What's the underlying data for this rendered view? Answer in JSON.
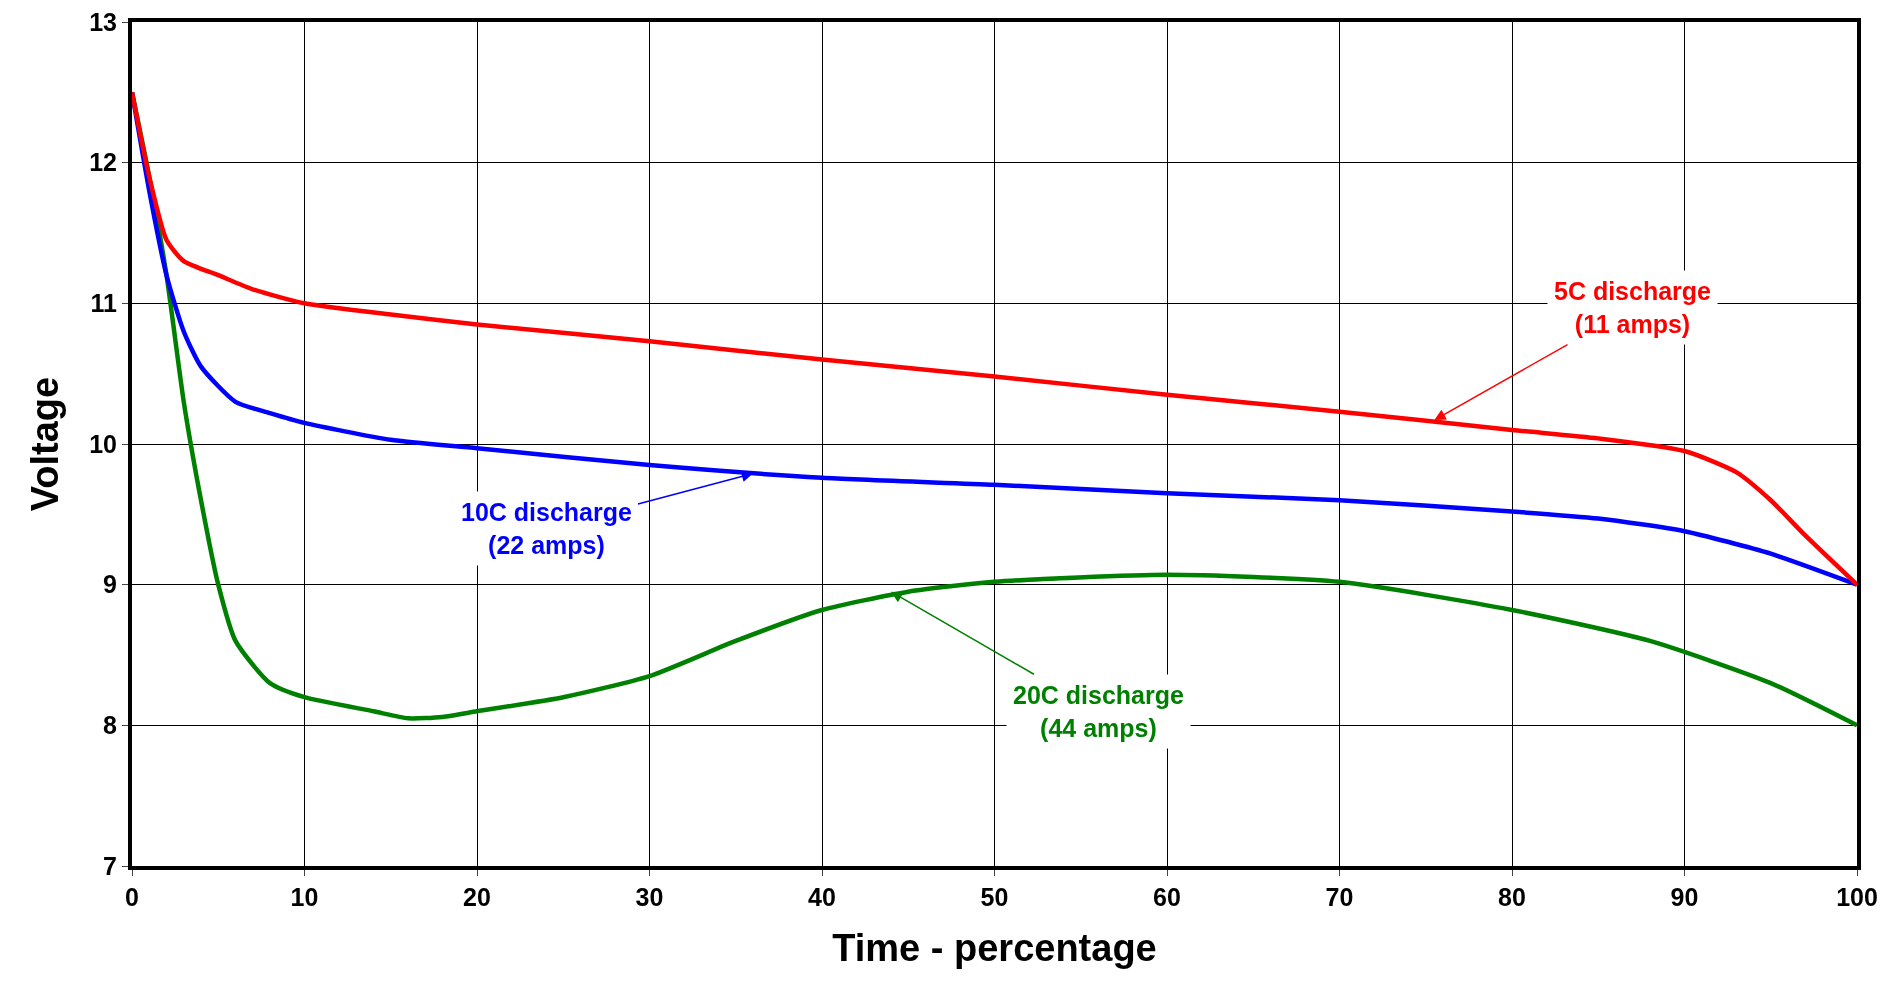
{
  "chart_data": {
    "type": "line",
    "xlabel": "Time - percentage",
    "ylabel": "Voltage",
    "xlim": [
      0,
      100
    ],
    "xticks": [
      0,
      10,
      20,
      30,
      40,
      50,
      60,
      70,
      80,
      90,
      100
    ],
    "ylim": [
      7,
      13
    ],
    "yticks": [
      7,
      8,
      9,
      10,
      11,
      12,
      13
    ],
    "grid": true,
    "marker": "none",
    "line_style": "solid",
    "series": [
      {
        "color": "#ff0000",
        "x": [
          0,
          1,
          2,
          3,
          5,
          7,
          10,
          15,
          20,
          30,
          40,
          50,
          60,
          70,
          80,
          85,
          90,
          93,
          95,
          97,
          100
        ],
        "values": [
          12.5,
          11.9,
          11.45,
          11.3,
          11.2,
          11.1,
          11.0,
          10.92,
          10.85,
          10.73,
          10.6,
          10.48,
          10.35,
          10.23,
          10.1,
          10.04,
          9.95,
          9.8,
          9.6,
          9.35,
          9.0
        ]
      },
      {
        "color": "#0000ff",
        "x": [
          0,
          1,
          2,
          3,
          4,
          6,
          8,
          10,
          15,
          20,
          30,
          40,
          50,
          60,
          70,
          80,
          85,
          90,
          95,
          100
        ],
        "values": [
          12.5,
          11.8,
          11.2,
          10.8,
          10.55,
          10.3,
          10.22,
          10.15,
          10.03,
          9.97,
          9.85,
          9.76,
          9.71,
          9.65,
          9.6,
          9.52,
          9.47,
          9.38,
          9.22,
          9.0
        ]
      },
      {
        "color": "#008000",
        "x": [
          0,
          1,
          2,
          3,
          4,
          5,
          6,
          8,
          10,
          14,
          16,
          18,
          20,
          25,
          30,
          35,
          40,
          45,
          50,
          60,
          70,
          80,
          88,
          95,
          100
        ],
        "values": [
          12.5,
          11.9,
          11.2,
          10.3,
          9.6,
          9.0,
          8.6,
          8.3,
          8.2,
          8.1,
          8.05,
          8.06,
          8.1,
          8.2,
          8.35,
          8.6,
          8.82,
          8.95,
          9.02,
          9.07,
          9.02,
          8.82,
          8.6,
          8.3,
          8.0
        ]
      }
    ],
    "annotations": [
      {
        "text": "5C discharge\n(11 amps)",
        "x": 75.5,
        "y": 10.17
      },
      {
        "text": "10C discharge\n(22 amps)",
        "x": 36,
        "y": 9.79
      },
      {
        "text": "20C discharge\n(44 amps)",
        "x": 44,
        "y": 8.95
      }
    ]
  }
}
